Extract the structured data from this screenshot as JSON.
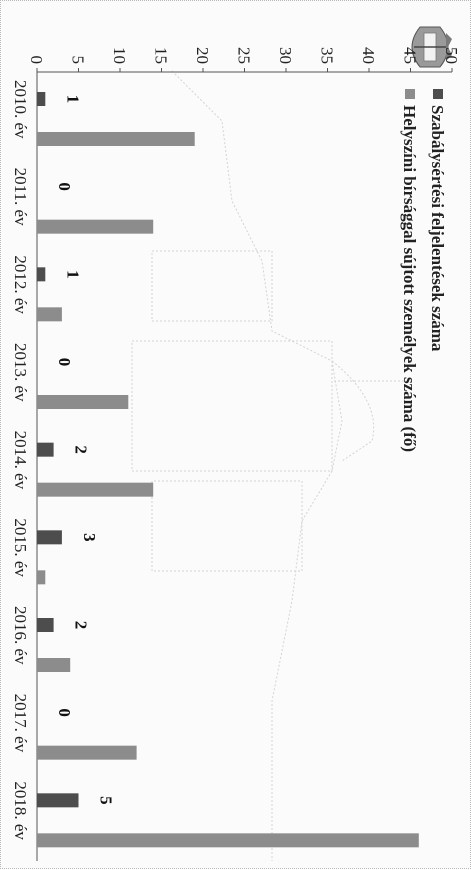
{
  "chart_data": {
    "type": "bar",
    "orientation": "vertical",
    "rotated": "90deg-clockwise",
    "categories": [
      "2010. év",
      "2011. év",
      "2012. év",
      "2013. év",
      "2014. év",
      "2015. év",
      "2016. év",
      "2017. év",
      "2018. év"
    ],
    "tick_labels_visible": [
      "2010. év",
      "2011. év",
      "2012. év",
      "2013. év",
      "2014. év",
      "2015. év",
      "2016. év",
      "2017. év",
      "2018. év"
    ],
    "series": [
      {
        "name": "Szabálysértési feljelentések száma",
        "color": "#4d4d4d",
        "values": [
          1,
          0,
          1,
          0,
          2,
          3,
          2,
          0,
          5
        ],
        "labels": [
          "1",
          "0",
          "1",
          "0",
          "2",
          "3",
          "2",
          "0",
          "5"
        ]
      },
      {
        "name": "Helyszíni bírsággal sújtott személyek száma (fő)",
        "color": "#8c8c8c",
        "values": [
          19,
          14,
          3,
          11,
          14,
          1,
          4,
          12,
          46
        ]
      }
    ],
    "ylim": [
      0,
      50
    ],
    "yticks": [
      "0",
      "5",
      "10",
      "15",
      "20",
      "25",
      "30",
      "35",
      "40",
      "45",
      "50"
    ],
    "legend_position": "top",
    "grid": false
  },
  "decoration": {
    "logo_icon": "coat-of-arms-icon",
    "background_icon": "building-watermark-icon"
  }
}
